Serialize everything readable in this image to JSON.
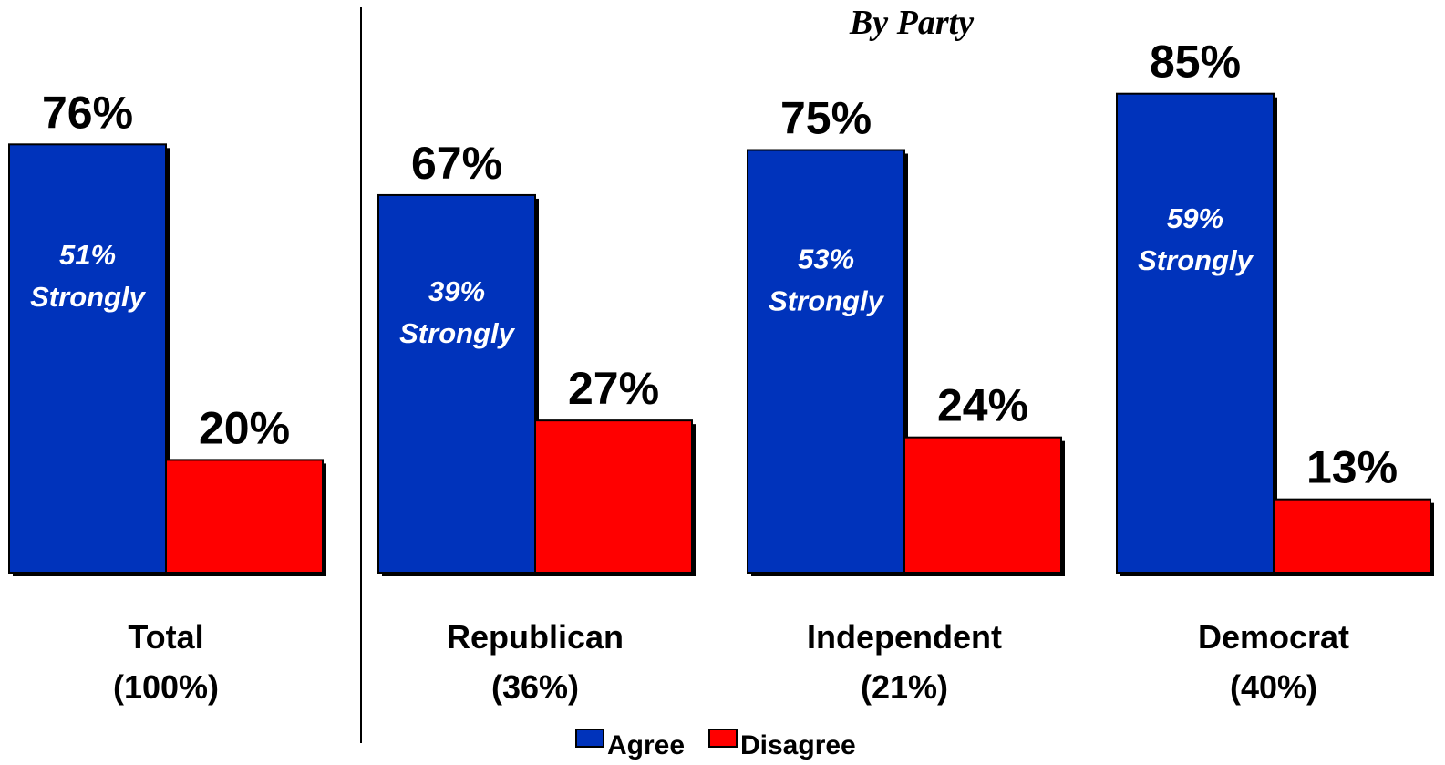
{
  "section_label": "By Party",
  "colors": {
    "agree": "#0033BB",
    "disagree": "#FF0000"
  },
  "legend": [
    {
      "label": "Agree",
      "color": "#0033BB"
    },
    {
      "label": "Disagree",
      "color": "#FF0000"
    }
  ],
  "chart_data": {
    "type": "bar",
    "categories": [
      {
        "name": "Total",
        "share": "(100%)"
      },
      {
        "name": "Republican",
        "share": "(36%)"
      },
      {
        "name": "Independent",
        "share": "(21%)"
      },
      {
        "name": "Democrat",
        "share": "(40%)"
      }
    ],
    "series": [
      {
        "name": "Agree",
        "values": [
          76,
          67,
          75,
          85
        ],
        "labels": [
          "76%",
          "67%",
          "75%",
          "85%"
        ]
      },
      {
        "name": "Disagree",
        "values": [
          20,
          27,
          24,
          13
        ],
        "labels": [
          "20%",
          "27%",
          "24%",
          "13%"
        ]
      }
    ],
    "strongly": [
      {
        "value": 51,
        "pct": "51%",
        "text": "Strongly"
      },
      {
        "value": 39,
        "pct": "39%",
        "text": "Strongly"
      },
      {
        "value": 53,
        "pct": "53%",
        "text": "Strongly"
      },
      {
        "value": 59,
        "pct": "59%",
        "text": "Strongly"
      }
    ],
    "ylim": [
      0,
      100
    ],
    "grid": false,
    "legend_position": "bottom-center"
  }
}
